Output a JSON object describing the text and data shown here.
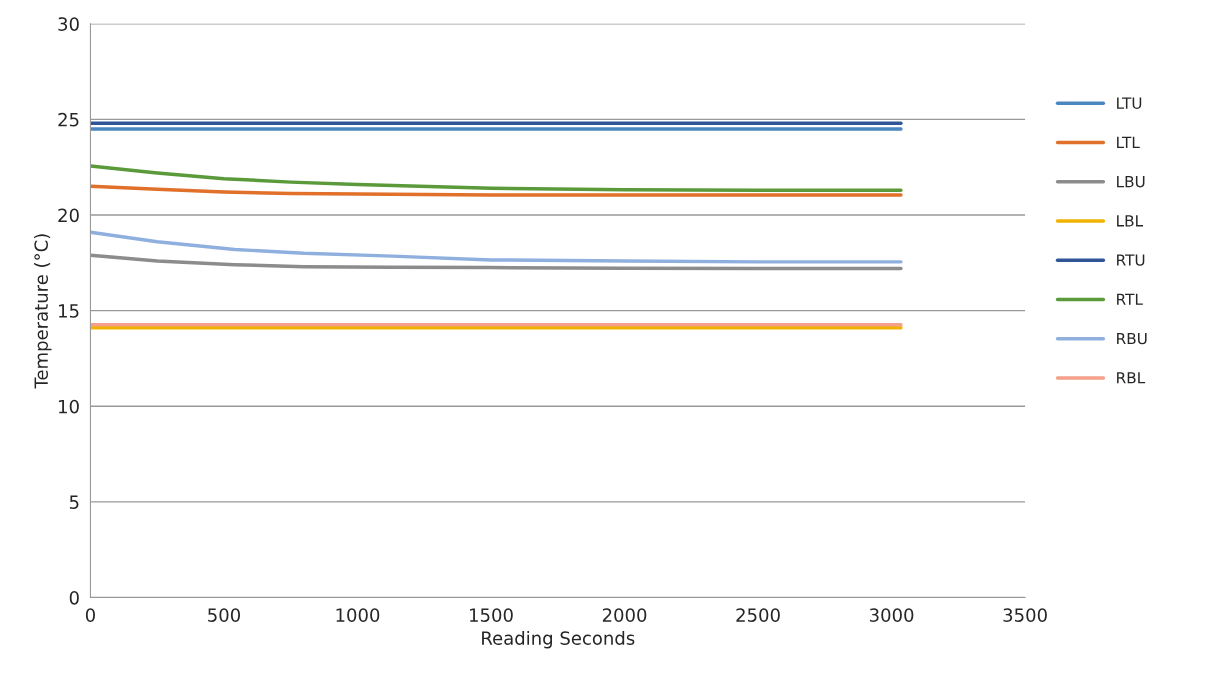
{
  "chart_data": {
    "type": "line",
    "xlabel": "Reading Seconds",
    "ylabel": "Temperature (°C)",
    "xlim": [
      0,
      3500
    ],
    "xticks": [
      0,
      500,
      1000,
      1500,
      2000,
      2500,
      3000,
      3500
    ],
    "ylim": [
      0,
      30
    ],
    "yticks": [
      0,
      5,
      10,
      15,
      20,
      25,
      30
    ],
    "grid": "y",
    "legend": "right",
    "marker": "none",
    "line_style": "solid",
    "series": [
      {
        "name": "LTU",
        "color": "#4a86c0",
        "x": [
          0,
          500,
          1000,
          1500,
          2000,
          2500,
          3035
        ],
        "values": [
          24.5,
          24.5,
          24.5,
          24.5,
          24.5,
          24.5,
          24.5
        ]
      },
      {
        "name": "LTL",
        "color": "#e0702a",
        "x": [
          0,
          250,
          500,
          750,
          1000,
          1500,
          2000,
          2500,
          3035
        ],
        "values": [
          21.5,
          21.35,
          21.2,
          21.12,
          21.1,
          21.05,
          21.05,
          21.05,
          21.05
        ]
      },
      {
        "name": "LBU",
        "color": "#8c8c8c",
        "x": [
          0,
          250,
          540,
          800,
          1130,
          1500,
          2000,
          2500,
          3035
        ],
        "values": [
          17.9,
          17.6,
          17.4,
          17.3,
          17.27,
          17.25,
          17.22,
          17.2,
          17.2
        ]
      },
      {
        "name": "LBL",
        "color": "#f0b400",
        "x": [
          0,
          500,
          1000,
          1500,
          2000,
          2500,
          3035
        ],
        "values": [
          14.1,
          14.1,
          14.1,
          14.1,
          14.1,
          14.1,
          14.1
        ]
      },
      {
        "name": "RTU",
        "color": "#2f5597",
        "x": [
          0,
          500,
          1000,
          1500,
          2000,
          2500,
          3035
        ],
        "values": [
          24.8,
          24.8,
          24.8,
          24.8,
          24.8,
          24.8,
          24.8
        ]
      },
      {
        "name": "RTL",
        "color": "#5a9a3a",
        "x": [
          0,
          250,
          500,
          750,
          1000,
          1500,
          2000,
          2500,
          3035
        ],
        "values": [
          22.56,
          22.2,
          21.9,
          21.72,
          21.6,
          21.4,
          21.32,
          21.3,
          21.3
        ]
      },
      {
        "name": "RBU",
        "color": "#8fb0de",
        "x": [
          0,
          250,
          540,
          800,
          1130,
          1500,
          2000,
          2500,
          3035
        ],
        "values": [
          19.1,
          18.6,
          18.2,
          18.0,
          17.85,
          17.65,
          17.6,
          17.55,
          17.55
        ]
      },
      {
        "name": "RBL",
        "color": "#f4a08a",
        "x": [
          0,
          500,
          1000,
          1500,
          2000,
          2500,
          3035
        ],
        "values": [
          14.26,
          14.26,
          14.26,
          14.26,
          14.26,
          14.26,
          14.26
        ]
      }
    ]
  }
}
